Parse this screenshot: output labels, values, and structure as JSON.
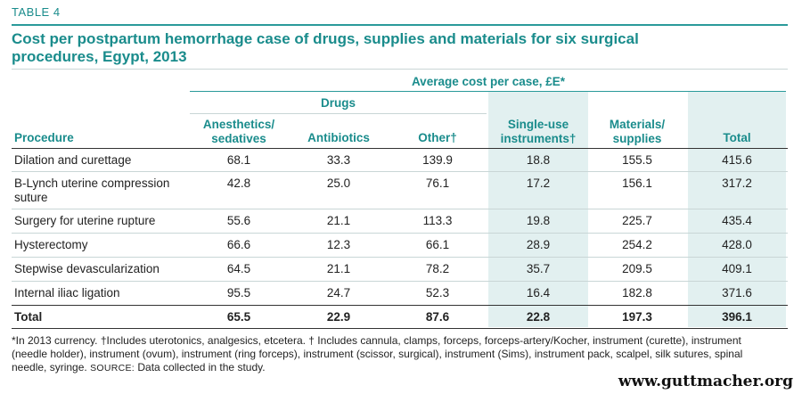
{
  "table_label": "TABLE 4",
  "title": "Cost per postpartum hemorrhage case of drugs, supplies and materials for six surgical procedures, Egypt, 2013",
  "header": {
    "super": "Average cost per case, £E*",
    "drugs": "Drugs",
    "columns": [
      "Procedure",
      "Anesthetics/ sedatives",
      "Antibiotics",
      "Other†",
      "Single-use instruments†",
      "Materials/ supplies",
      "Total"
    ]
  },
  "rows": [
    [
      "Dilation and curettage",
      "68.1",
      "33.3",
      "139.9",
      "18.8",
      "155.5",
      "415.6"
    ],
    [
      "B-Lynch uterine compression suture",
      "42.8",
      "25.0",
      "76.1",
      "17.2",
      "156.1",
      "317.2"
    ],
    [
      "Surgery for uterine rupture",
      "55.6",
      "21.1",
      "113.3",
      "19.8",
      "225.7",
      "435.4"
    ],
    [
      "Hysterectomy",
      "66.6",
      "12.3",
      "66.1",
      "28.9",
      "254.2",
      "428.0"
    ],
    [
      "Stepwise devascularization",
      "64.5",
      "21.1",
      "78.2",
      "35.7",
      "209.5",
      "409.1"
    ],
    [
      "Internal iliac ligation",
      "95.5",
      "24.7",
      "52.3",
      "16.4",
      "182.8",
      "371.6"
    ]
  ],
  "total_row": [
    "Total",
    "65.5",
    "22.9",
    "87.6",
    "22.8",
    "197.3",
    "396.1"
  ],
  "footnote": {
    "text": "*In 2013 currency. †Includes uterotonics, analgesics, etcetera. † Includes cannula, clamps, forceps, forceps-artery/Kocher, instrument (curette), instrument (needle holder), instrument (ovum), instrument (ring forceps), instrument (scissor, surgical), instrument (Sims), instrument pack, scalpel, silk sutures, spinal needle, syringe.",
    "source_label": "SOURCE:",
    "source_text": "Data collected in the study."
  },
  "website": "www.guttmacher.org",
  "colors": {
    "accent": "#1a8c8c",
    "shade": "#e2f0f0"
  }
}
